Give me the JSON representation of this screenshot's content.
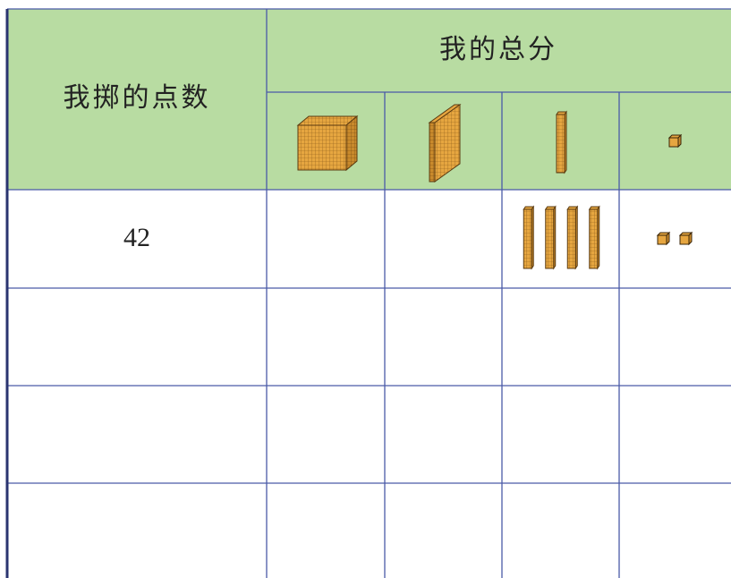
{
  "header": {
    "roll_label": "我掷的点数",
    "total_label": "我的总分"
  },
  "table": {
    "rows": [
      {
        "roll": "42",
        "tens": 4,
        "ones": 2
      }
    ]
  }
}
